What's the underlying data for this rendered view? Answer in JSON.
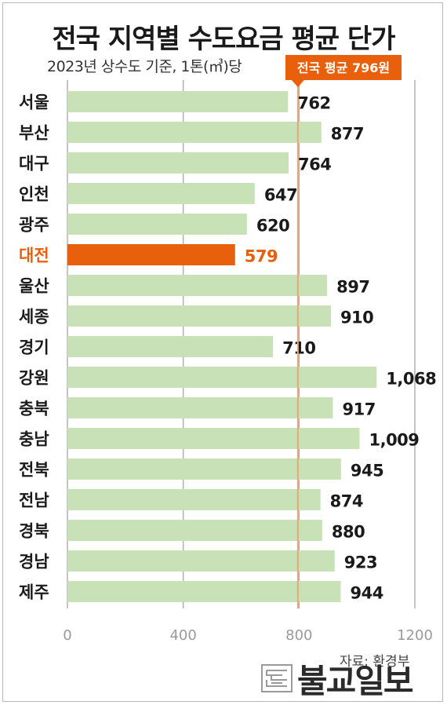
{
  "title": "전국 지역별 수도요금 평균 단가",
  "subtitle": "2023년 상수도 기준, 1톤(㎥)당",
  "source": "자료: 환경부",
  "logo_text": "불교일보",
  "colors": {
    "bar": "#c9e1b7",
    "highlight": "#e8600b",
    "average_line": "#e8a878",
    "callout": "#e8600b",
    "grid": "#b0b0b0",
    "tick_label": "#9a9a9a"
  },
  "chart_data": {
    "type": "bar",
    "orientation": "horizontal",
    "categories": [
      "서울",
      "부산",
      "대구",
      "인천",
      "광주",
      "대전",
      "울산",
      "세종",
      "경기",
      "강원",
      "충북",
      "충남",
      "전북",
      "전남",
      "경북",
      "경남",
      "제주"
    ],
    "values": [
      762,
      877,
      764,
      647,
      620,
      579,
      897,
      910,
      710,
      1068,
      917,
      1009,
      945,
      874,
      880,
      923,
      944
    ],
    "value_labels": [
      "762",
      "877",
      "764",
      "647",
      "620",
      "579",
      "897",
      "910",
      "710",
      "1,068",
      "917",
      "1,009",
      "945",
      "874",
      "880",
      "923",
      "944"
    ],
    "highlight": "대전",
    "xlim": [
      0,
      1200
    ],
    "xticks": [
      0,
      400,
      800,
      1200
    ],
    "xtick_labels": [
      "0",
      "400",
      "800",
      "1200"
    ],
    "average": 796,
    "average_label": "전국 평균 796원",
    "grid": true
  }
}
